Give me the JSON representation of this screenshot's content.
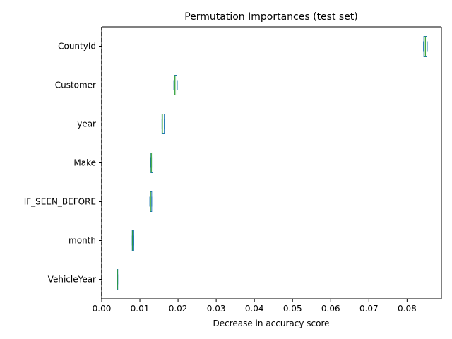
{
  "chart_data": {
    "type": "boxplot",
    "orientation": "horizontal",
    "title": "Permutation Importances (test set)",
    "xlabel": "Decrease in accuracy score",
    "ylabel": "",
    "xlim": [
      0.0,
      0.089
    ],
    "xticks": [
      0.0,
      0.01,
      0.02,
      0.03,
      0.04,
      0.05,
      0.06,
      0.07,
      0.08
    ],
    "xtick_labels": [
      "0.00",
      "0.01",
      "0.02",
      "0.03",
      "0.04",
      "0.05",
      "0.06",
      "0.07",
      "0.08"
    ],
    "reference_line": {
      "x": 0.0,
      "style": "dashed",
      "color": "#000000"
    },
    "colors": {
      "box": "#1f77b4",
      "median": "#2ca02c",
      "whisker": "#1f77b4"
    },
    "categories": [
      "CountyId",
      "Customer",
      "year",
      "Make",
      "IF_SEEN_BEFORE",
      "month",
      "VehicleYear"
    ],
    "boxes": [
      {
        "min": 0.0843,
        "q1": 0.0844,
        "median": 0.0848,
        "q3": 0.0852,
        "max": 0.0853
      },
      {
        "min": 0.0189,
        "q1": 0.019,
        "median": 0.0192,
        "q3": 0.0197,
        "max": 0.0198
      },
      {
        "min": 0.0158,
        "q1": 0.0158,
        "median": 0.0159,
        "q3": 0.0164,
        "max": 0.0164
      },
      {
        "min": 0.0128,
        "q1": 0.0129,
        "median": 0.013,
        "q3": 0.0134,
        "max": 0.0134
      },
      {
        "min": 0.0126,
        "q1": 0.0127,
        "median": 0.0128,
        "q3": 0.0131,
        "max": 0.0131
      },
      {
        "min": 0.008,
        "q1": 0.008,
        "median": 0.0081,
        "q3": 0.0084,
        "max": 0.0084
      },
      {
        "min": 0.004,
        "q1": 0.004,
        "median": 0.0041,
        "q3": 0.0042,
        "max": 0.0042
      }
    ]
  }
}
